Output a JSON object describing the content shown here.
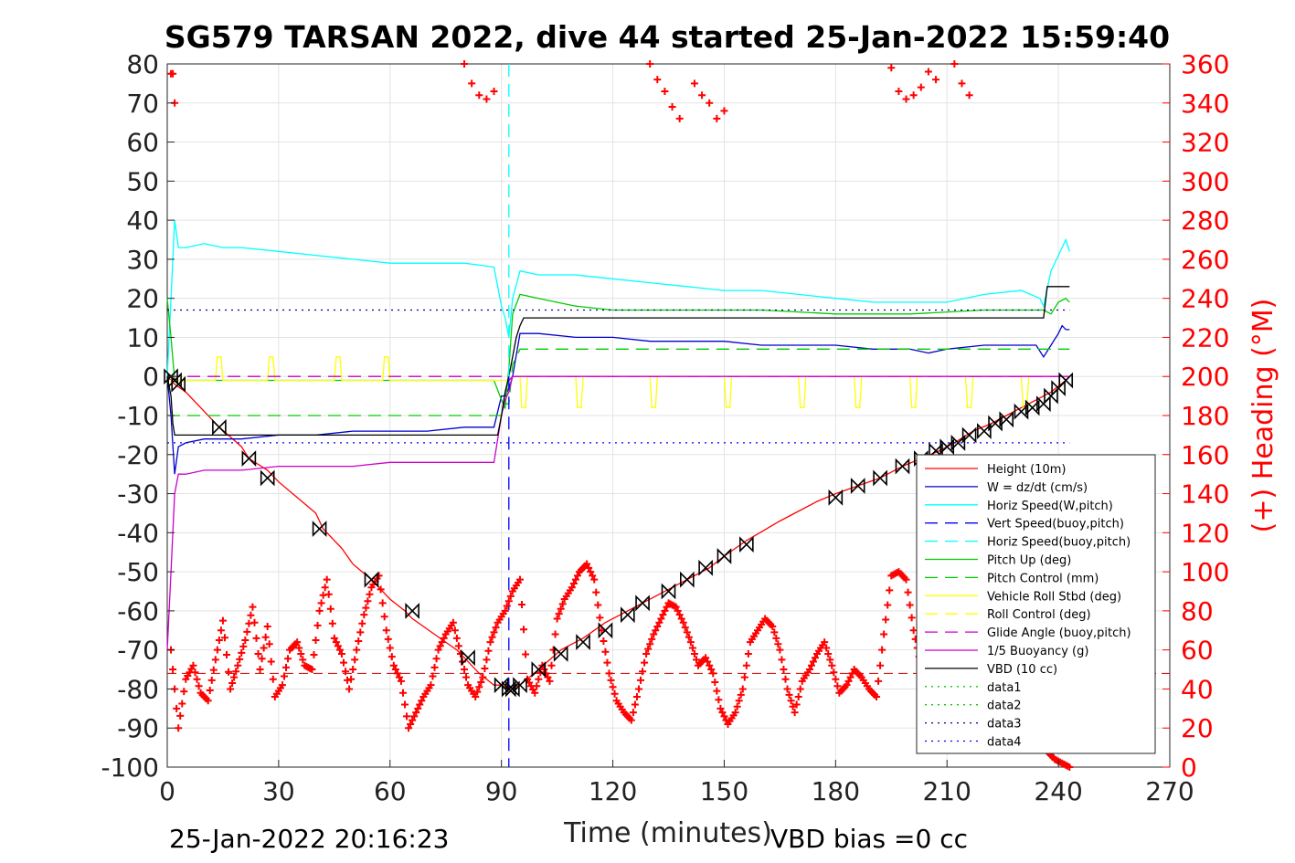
{
  "chart_data": {
    "type": "line",
    "title": "SG579 TARSAN 2022, dive 44 started 25-Jan-2022 15:59:40",
    "xlabel": "Time (minutes)",
    "ylabel_right": "(+) Heading (°M)",
    "xlim": [
      0,
      270
    ],
    "ylim": [
      -100,
      80
    ],
    "ylim_right": [
      0,
      360
    ],
    "xticks": [
      "0",
      "30",
      "60",
      "90",
      "120",
      "150",
      "180",
      "210",
      "240",
      "270"
    ],
    "yticks": [
      "80",
      "70",
      "60",
      "50",
      "40",
      "30",
      "20",
      "10",
      "0",
      "-10",
      "-20",
      "-30",
      "-40",
      "-50",
      "-60",
      "-70",
      "-80",
      "-90",
      "-100"
    ],
    "yticks_right": [
      "360",
      "340",
      "320",
      "300",
      "280",
      "260",
      "240",
      "220",
      "200",
      "180",
      "160",
      "140",
      "120",
      "100",
      "80",
      "60",
      "40",
      "20",
      "0"
    ],
    "grid": true,
    "legend_position": "bottom-right",
    "footer_left": "25-Jan-2022 20:16:23",
    "footer_right": "VBD bias =0 cc",
    "apogee_time": 92,
    "colors": {
      "height": "#ff0000",
      "w": "#0000cc",
      "horiz": "#00ffff",
      "pitch": "#00cc00",
      "roll": "#ffff00",
      "glide": "#cc00cc",
      "vbd": "#000000",
      "heading": "#ff0000",
      "data3": "#000080",
      "data4": "#0000ff"
    },
    "series": [
      {
        "name": "Height (10m)",
        "style": "solid",
        "color": "#ff0000",
        "x": [
          0,
          2,
          5,
          10,
          14,
          20,
          22,
          27,
          30,
          35,
          40,
          42,
          47,
          50,
          55,
          56,
          60,
          64,
          66,
          72,
          78,
          80,
          84,
          88,
          90,
          92,
          95,
          100,
          106,
          112,
          118,
          124,
          130,
          138,
          146,
          150,
          156,
          165,
          175,
          180,
          186,
          192,
          198,
          203,
          208,
          212,
          217,
          222,
          226,
          230,
          234,
          238,
          242,
          243
        ],
        "y": [
          0,
          -2,
          -4,
          -9,
          -13,
          -18,
          -21,
          -24,
          -27,
          -31,
          -35,
          -39,
          -44,
          -48,
          -52,
          -53,
          -57,
          -60,
          -62,
          -66,
          -70,
          -72,
          -76,
          -79,
          -79,
          -80,
          -79,
          -75,
          -70,
          -67,
          -63,
          -60,
          -57,
          -53,
          -49,
          -46,
          -42,
          -37,
          -32,
          -30,
          -28,
          -26,
          -23,
          -21,
          -19,
          -17,
          -14,
          -12,
          -10,
          -8,
          -6,
          -4,
          -1,
          0
        ]
      },
      {
        "name": "W = dz/dt (cm/s)",
        "style": "solid",
        "color": "#0000cc",
        "x": [
          0,
          1,
          2,
          3,
          5,
          10,
          20,
          30,
          40,
          50,
          60,
          70,
          80,
          88,
          90,
          91,
          92,
          93,
          95,
          100,
          110,
          120,
          130,
          140,
          150,
          160,
          170,
          180,
          190,
          200,
          205,
          210,
          220,
          230,
          234,
          236,
          238,
          240,
          241,
          242,
          243
        ],
        "y": [
          0,
          -10,
          -25,
          -18,
          -17,
          -16,
          -16,
          -15,
          -15,
          -14,
          -14,
          -14,
          -13,
          -13,
          -5,
          -5,
          -3,
          0,
          11,
          11,
          10,
          10,
          9,
          9,
          9,
          8,
          8,
          8,
          7,
          7,
          6,
          7,
          8,
          8,
          8,
          5,
          8,
          11,
          13,
          12,
          12
        ]
      },
      {
        "name": "Horiz Speed(W,pitch)",
        "style": "solid",
        "color": "#00ffff",
        "x": [
          0,
          1,
          2,
          3,
          5,
          10,
          15,
          20,
          30,
          40,
          50,
          60,
          70,
          80,
          88,
          90,
          91,
          92,
          93,
          95,
          100,
          110,
          120,
          130,
          140,
          150,
          160,
          170,
          180,
          190,
          200,
          210,
          220,
          230,
          235,
          236,
          238,
          240,
          242,
          243
        ],
        "y": [
          0,
          20,
          40,
          33,
          33,
          34,
          33,
          33,
          32,
          31,
          30,
          29,
          29,
          29,
          28,
          18,
          15,
          10,
          20,
          27,
          26,
          26,
          25,
          24,
          23,
          22,
          22,
          21,
          20,
          19,
          19,
          19,
          21,
          22,
          20,
          18,
          27,
          31,
          35,
          32
        ]
      },
      {
        "name": "Vert Speed(buoy,pitch)",
        "style": "dashed",
        "color": "#0000ff",
        "x": [],
        "y": []
      },
      {
        "name": "Horiz Speed(buoy,pitch)",
        "style": "dashed",
        "color": "#00ffff",
        "x": [],
        "y": []
      },
      {
        "name": "Pitch Up (deg)",
        "style": "solid",
        "color": "#00cc00",
        "x": [
          0,
          1,
          2,
          3,
          5,
          20,
          40,
          60,
          80,
          88,
          90,
          91,
          92,
          93,
          95,
          100,
          110,
          120,
          140,
          160,
          180,
          200,
          220,
          230,
          236,
          238,
          240,
          242,
          243
        ],
        "y": [
          20,
          10,
          -1,
          -1,
          -1,
          -1,
          -1,
          -1,
          -1,
          -1,
          -6,
          -8,
          2,
          16,
          21,
          20,
          18,
          17,
          17,
          17,
          16,
          16,
          17,
          17,
          17,
          16,
          19,
          20,
          19
        ]
      },
      {
        "name": "Pitch Control (mm)",
        "style": "dashed",
        "color": "#00cc00",
        "x": [
          0,
          2,
          3,
          90,
          91,
          92,
          93,
          95,
          240,
          243
        ],
        "y": [
          -10,
          -10,
          -10,
          -10,
          -7,
          -7,
          3,
          7,
          7,
          7
        ]
      },
      {
        "name": "Vehicle Roll Stbd (deg)",
        "style": "solid",
        "color": "#ffff00",
        "x": [
          0,
          5,
          13,
          13.5,
          14.5,
          15,
          27,
          27.5,
          28.5,
          29,
          45,
          45.5,
          46.5,
          47,
          58,
          58.5,
          59.5,
          60,
          90,
          92,
          93,
          95,
          95.5,
          96.5,
          97,
          110,
          110.5,
          111.5,
          112,
          130,
          130.5,
          131.5,
          132,
          150,
          150.5,
          151.5,
          152,
          170,
          170.5,
          171.5,
          172,
          185,
          185.5,
          186.5,
          187,
          200,
          200.5,
          201.5,
          202,
          215,
          215.5,
          216.5,
          217,
          230,
          230.5,
          231.5,
          232,
          240,
          243
        ],
        "y": [
          -1,
          -1,
          -1,
          5,
          5,
          -1,
          -1,
          5,
          5,
          -1,
          -1,
          5,
          5,
          -1,
          -1,
          5,
          5,
          -1,
          -1,
          -1,
          0,
          0,
          -8,
          -8,
          0,
          0,
          -8,
          -8,
          0,
          0,
          -8,
          -8,
          0,
          0,
          -8,
          -8,
          0,
          0,
          -8,
          -8,
          0,
          0,
          -8,
          -8,
          0,
          0,
          -8,
          -8,
          0,
          0,
          -8,
          -8,
          0,
          0,
          -8,
          -8,
          0,
          0,
          0
        ]
      },
      {
        "name": "Roll Control (deg)",
        "style": "dashed",
        "color": "#ffff00",
        "x": [],
        "y": []
      },
      {
        "name": "Glide Angle (buoy,pitch)",
        "style": "dashed",
        "color": "#cc00cc",
        "x": [
          0,
          2,
          90,
          92,
          93,
          243
        ],
        "y": [
          0,
          0,
          0,
          -1,
          0,
          0
        ]
      },
      {
        "name": "1/5 Buoyancy (g)",
        "style": "solid",
        "color": "#cc00cc",
        "x": [
          0,
          1,
          2,
          3,
          5,
          10,
          20,
          30,
          40,
          50,
          60,
          70,
          80,
          88,
          90,
          91,
          92,
          93,
          243
        ],
        "y": [
          -70,
          -50,
          -30,
          -25,
          -25,
          -24,
          -24,
          -23,
          -23,
          -23,
          -22,
          -22,
          -22,
          -22,
          -10,
          -6,
          -4,
          0,
          0
        ]
      },
      {
        "name": "VBD (10 cc)",
        "style": "solid",
        "color": "#000000",
        "x": [
          0,
          1,
          1.5,
          2,
          89,
          90,
          91,
          92,
          93,
          94,
          95,
          96,
          200,
          236,
          237,
          243
        ],
        "y": [
          0,
          -5,
          -12,
          -15,
          -15,
          -10,
          -4,
          0,
          5,
          10,
          13,
          15,
          15,
          15,
          23,
          23
        ]
      },
      {
        "name": "data1",
        "style": "dotted",
        "color": "#00cc00",
        "x": [],
        "y": []
      },
      {
        "name": "data2",
        "style": "dotted",
        "color": "#00cc00",
        "x": [],
        "y": []
      },
      {
        "name": "data3",
        "style": "dotted",
        "color": "#000080",
        "x": [
          0,
          243
        ],
        "y": [
          17,
          17
        ]
      },
      {
        "name": "data4",
        "style": "dotted",
        "color": "#0000ff",
        "x": [
          0,
          243
        ],
        "y": [
          -17,
          -17
        ]
      }
    ],
    "markers": {
      "x": [
        1,
        2,
        3,
        14,
        22,
        27,
        41,
        55,
        66,
        81,
        90,
        92,
        93,
        95,
        100,
        106,
        112,
        118,
        124,
        128,
        135,
        140,
        145,
        150,
        156,
        180,
        186,
        192,
        198,
        203,
        207,
        210,
        213,
        216,
        220,
        223,
        226,
        230,
        233,
        236,
        238,
        240,
        242
      ],
      "y": [
        0,
        -1,
        -2,
        -13,
        -21,
        -26,
        -39,
        -52,
        -60,
        -72,
        -79,
        -80,
        -80,
        -79,
        -75,
        -71,
        -68,
        -65,
        -61,
        -58,
        -55,
        -52,
        -49,
        -46,
        -43,
        -31,
        -28,
        -26,
        -23,
        -21,
        -19,
        -18,
        -17,
        -15,
        -14,
        -12,
        -11,
        -9,
        -8,
        -7,
        -5,
        -3,
        -1
      ]
    },
    "heading": {
      "name": "Heading",
      "x": [
        1,
        3,
        5,
        7,
        9,
        11,
        13,
        15,
        17,
        19,
        21,
        23,
        25,
        27,
        29,
        31,
        33,
        35,
        37,
        39,
        41,
        43,
        45,
        47,
        49,
        51,
        53,
        55,
        57,
        59,
        61,
        63,
        65,
        67,
        69,
        71,
        73,
        75,
        77,
        79,
        81,
        83,
        85,
        87,
        89,
        91,
        93,
        95,
        97,
        99,
        101,
        103,
        105,
        107,
        109,
        111,
        113,
        115,
        117,
        119,
        121,
        123,
        125,
        127,
        129,
        131,
        133,
        135,
        137,
        139,
        141,
        143,
        145,
        147,
        149,
        151,
        153,
        155,
        157,
        159,
        161,
        163,
        165,
        167,
        169,
        171,
        173,
        175,
        177,
        179,
        181,
        183,
        185,
        187,
        189,
        191,
        193,
        195,
        197,
        199,
        201,
        203,
        205,
        207,
        209,
        211,
        213,
        215,
        217,
        219,
        221,
        223,
        225,
        227,
        229,
        231,
        233,
        235,
        237,
        239,
        241,
        243
      ],
      "y": [
        60,
        20,
        45,
        52,
        38,
        34,
        55,
        75,
        40,
        52,
        65,
        82,
        50,
        72,
        36,
        42,
        60,
        64,
        52,
        50,
        80,
        96,
        66,
        58,
        40,
        60,
        78,
        92,
        98,
        70,
        52,
        44,
        20,
        28,
        36,
        42,
        60,
        68,
        74,
        58,
        42,
        36,
        46,
        64,
        74,
        80,
        90,
        96,
        45,
        38,
        52,
        44,
        76,
        86,
        92,
        100,
        104,
        96,
        70,
        48,
        34,
        28,
        24,
        40,
        58,
        68,
        76,
        84,
        82,
        74,
        64,
        52,
        56,
        48,
        30,
        22,
        28,
        40,
        64,
        70,
        76,
        72,
        60,
        40,
        28,
        44,
        50,
        58,
        64,
        52,
        38,
        42,
        50,
        46,
        40,
        36,
        68,
        98,
        100,
        96,
        70,
        52,
        64,
        70,
        60,
        48,
        30,
        22,
        44,
        56,
        40,
        32,
        28,
        34,
        30,
        22,
        18,
        12,
        8,
        4,
        2,
        0
      ]
    },
    "heading_top": {
      "x": [
        1,
        1.5,
        2,
        80,
        82,
        84,
        86,
        88,
        130,
        132,
        134,
        136,
        138,
        142,
        144,
        146,
        148,
        150,
        195,
        197,
        199,
        201,
        203,
        205,
        207,
        212,
        214,
        216
      ],
      "y": [
        355,
        355,
        340,
        360,
        350,
        344,
        342,
        346,
        360,
        352,
        346,
        338,
        332,
        350,
        344,
        340,
        332,
        336,
        358,
        346,
        342,
        344,
        348,
        356,
        352,
        360,
        350,
        344
      ]
    }
  }
}
